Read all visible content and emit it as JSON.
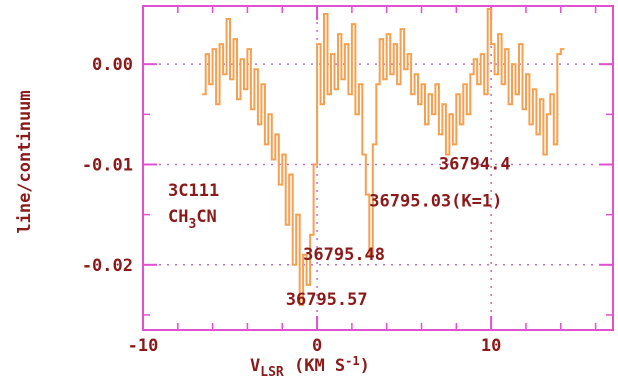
{
  "chart_data": {
    "type": "line",
    "title": "",
    "xlabel": "V",
    "xlabel_sub": "LSR",
    "xlabel_rest": " (KM S",
    "xlabel_sup": "-1",
    "xlabel_end": ")",
    "ylabel": "line/continuum",
    "xlim": [
      -10,
      17
    ],
    "ylim": [
      -0.0265,
      0.0058
    ],
    "x_ticks": [
      -10,
      0,
      10
    ],
    "x_tick_labels": [
      "-10",
      "0",
      "10"
    ],
    "y_ticks": [
      0.0,
      -0.01,
      -0.02
    ],
    "y_tick_labels": [
      "0.00",
      "-0.01",
      "-0.02"
    ],
    "grid": "dotted",
    "colors": {
      "frame": "#e050d0",
      "line": "#f5a050",
      "text": "#8a1a1a",
      "grid": "#c070c0"
    },
    "source_label": {
      "line1": "3C111",
      "molecule_prefix": "CH",
      "molecule_sub": "3",
      "molecule_suffix": "CN"
    },
    "annotations": [
      {
        "text": "36794.4",
        "x": 7.0,
        "y": -0.0105
      },
      {
        "text": "36795.03(K=1)",
        "x": 3.0,
        "y": -0.0142
      },
      {
        "text": "36795.48",
        "x": -0.8,
        "y": -0.0195
      },
      {
        "text": "36795.57",
        "x": -1.8,
        "y": -0.024
      }
    ],
    "series": [
      {
        "x": [
          -6.5,
          -6.3,
          -6.1,
          -5.9,
          -5.7,
          -5.5,
          -5.3,
          -5.1,
          -4.9,
          -4.7,
          -4.5,
          -4.3,
          -4.1,
          -3.9,
          -3.7,
          -3.5,
          -3.3,
          -3.1,
          -2.9,
          -2.7,
          -2.5,
          -2.3,
          -2.1,
          -1.9,
          -1.7,
          -1.5,
          -1.3,
          -1.1,
          -0.9,
          -0.7,
          -0.5,
          -0.3,
          -0.1,
          0.1,
          0.3,
          0.5,
          0.7,
          0.9,
          1.1,
          1.3,
          1.5,
          1.7,
          1.9,
          2.1,
          2.3,
          2.5,
          2.7,
          2.9,
          3.1,
          3.3,
          3.5,
          3.7,
          3.9,
          4.1,
          4.3,
          4.5,
          4.7,
          4.9,
          5.1,
          5.3,
          5.5,
          5.7,
          5.9,
          6.1,
          6.3,
          6.5,
          6.7,
          6.9,
          7.1,
          7.3,
          7.5,
          7.7,
          7.9,
          8.1,
          8.3,
          8.5,
          8.7,
          8.9,
          9.1,
          9.3,
          9.5,
          9.7,
          9.9,
          10.1,
          10.3,
          10.5,
          10.7,
          10.9,
          11.1,
          11.3,
          11.5,
          11.7,
          11.9,
          12.1,
          12.3,
          12.5,
          12.7,
          12.9,
          13.1,
          13.3,
          13.5,
          13.7,
          13.9,
          14.1
        ],
        "values": [
          -0.003,
          0.001,
          -0.002,
          0.0015,
          -0.004,
          0.002,
          -0.001,
          0.0045,
          -0.0015,
          0.0025,
          -0.0035,
          0.0005,
          -0.0025,
          0.0015,
          -0.0045,
          -0.0005,
          -0.006,
          -0.002,
          -0.008,
          -0.005,
          -0.0095,
          -0.007,
          -0.012,
          -0.009,
          -0.016,
          -0.011,
          -0.02,
          -0.015,
          -0.024,
          -0.019,
          -0.022,
          -0.017,
          -0.01,
          0.002,
          -0.004,
          0.005,
          -0.003,
          0.001,
          -0.0025,
          0.003,
          -0.0015,
          0.002,
          -0.003,
          0.004,
          -0.005,
          -0.002,
          -0.009,
          -0.013,
          -0.019,
          -0.008,
          -0.002,
          0.0025,
          -0.0015,
          0.003,
          -0.001,
          0.002,
          -0.002,
          0.0035,
          -0.0005,
          0.001,
          -0.003,
          -0.001,
          -0.004,
          -0.002,
          -0.006,
          -0.003,
          -0.005,
          -0.002,
          -0.007,
          -0.004,
          -0.009,
          -0.005,
          -0.008,
          -0.003,
          -0.006,
          -0.002,
          -0.005,
          -0.001,
          0.0005,
          -0.002,
          0.001,
          -0.003,
          0.0055,
          0.002,
          -0.001,
          0.003,
          -0.002,
          0.0015,
          -0.004,
          0.0,
          -0.003,
          0.002,
          -0.0045,
          -0.001,
          -0.006,
          -0.0025,
          -0.007,
          -0.0035,
          -0.009,
          -0.005,
          -0.003,
          -0.008,
          0.001,
          0.0015
        ]
      }
    ]
  }
}
